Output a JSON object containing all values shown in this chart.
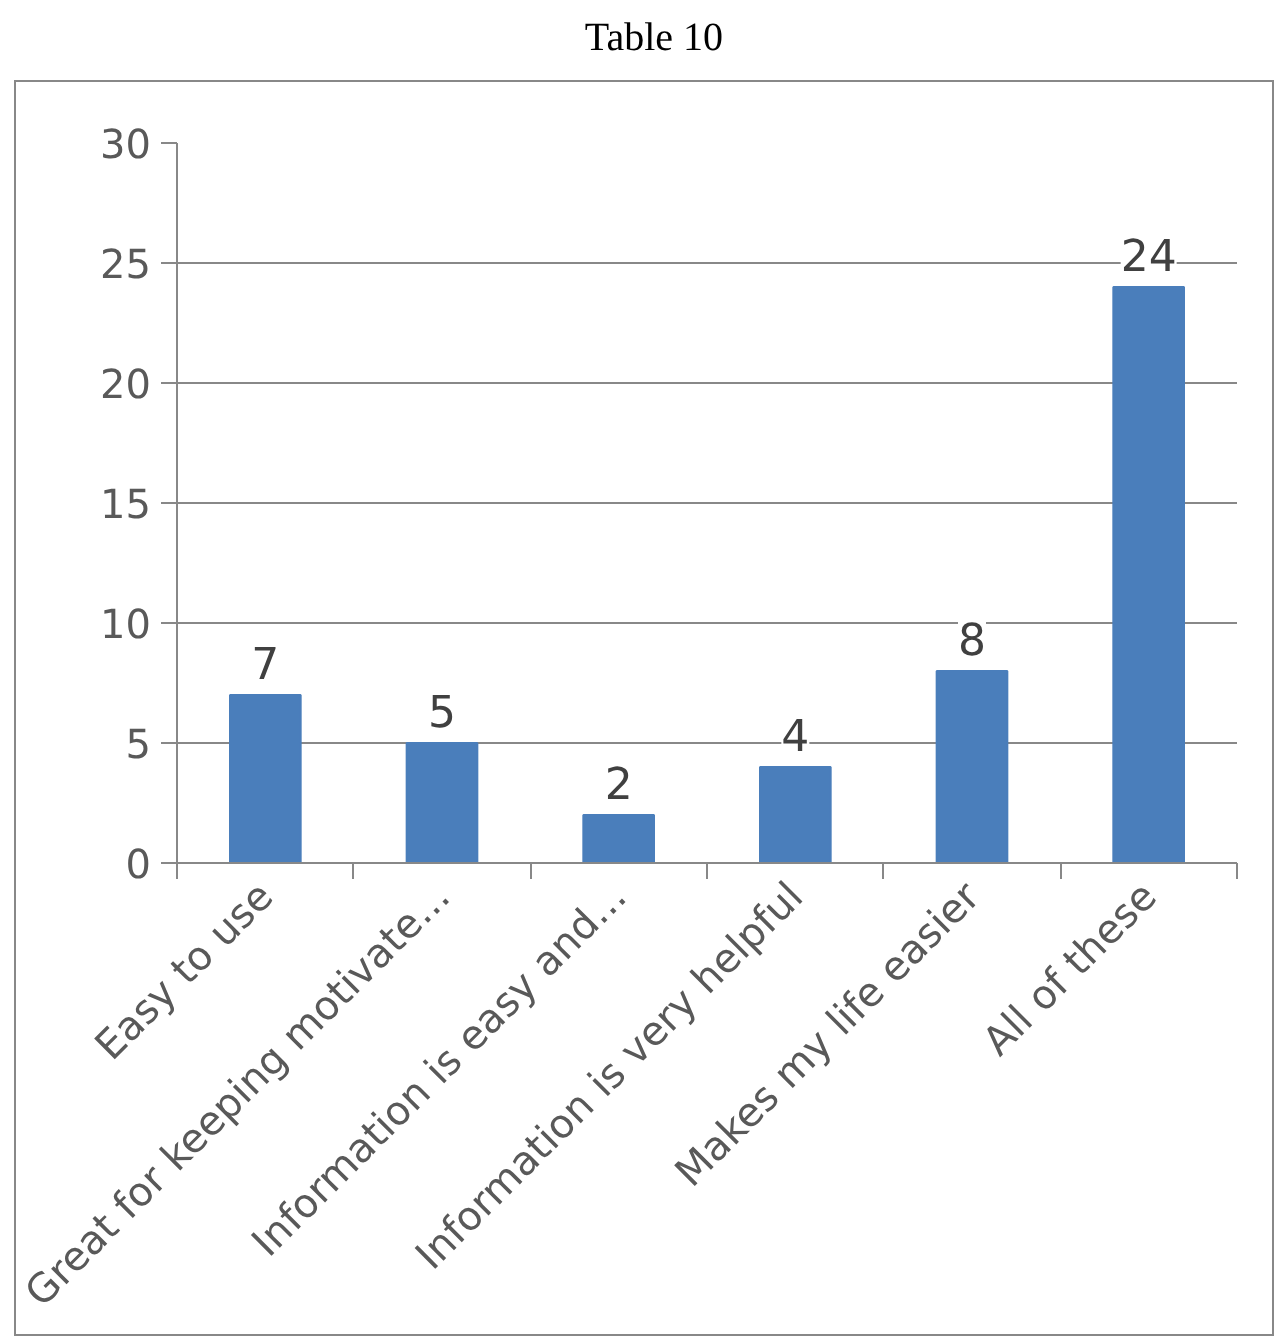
{
  "chart_data": {
    "type": "bar",
    "title": "Table 10",
    "categories": [
      "Easy to use",
      "Great for keeping motivate...",
      "Information is easy and...",
      "Information is very helpful",
      "Makes my life easier",
      "All of these"
    ],
    "values": [
      7,
      5,
      2,
      4,
      8,
      24
    ],
    "color": "#4a7ebb",
    "ylim": [
      0,
      30
    ],
    "yticks": [
      0,
      5,
      10,
      15,
      20,
      25,
      30
    ],
    "grid": "y",
    "data_labels": true
  }
}
